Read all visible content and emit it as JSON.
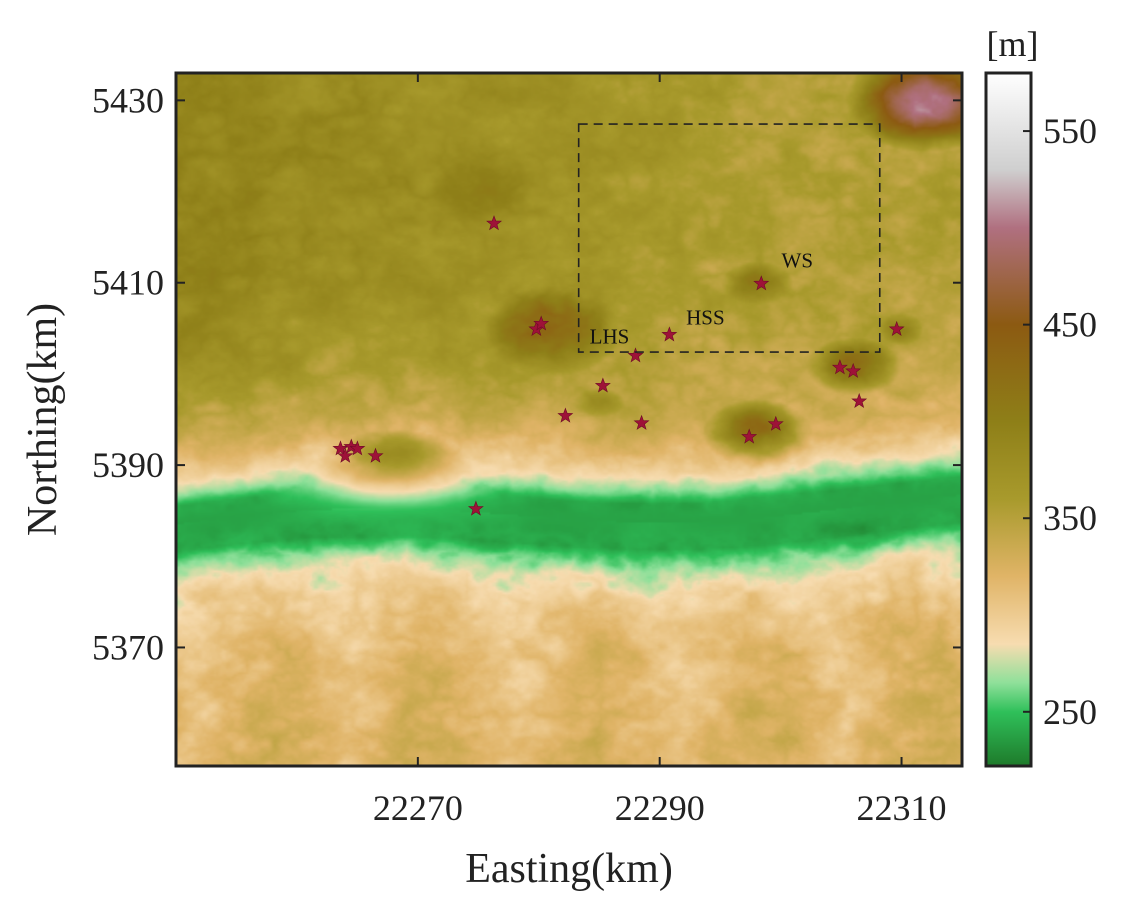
{
  "chart_data": {
    "type": "heatmap",
    "title": "",
    "xlabel": "Easting(km)",
    "ylabel": "Northing(km)",
    "xlim": [
      22250,
      22315
    ],
    "ylim": [
      5357,
      5433
    ],
    "xticks": [
      22270,
      22290,
      22310
    ],
    "yticks": [
      5370,
      5390,
      5410,
      5430
    ],
    "colorbar": {
      "unit": "[m]",
      "range": [
        222,
        580
      ],
      "ticks": [
        250,
        350,
        450,
        550
      ],
      "colors": [
        {
          "value": 222,
          "color": "#1e7a2a"
        },
        {
          "value": 250,
          "color": "#2fc05a"
        },
        {
          "value": 265,
          "color": "#8fe09a"
        },
        {
          "value": 285,
          "color": "#f7dcb0"
        },
        {
          "value": 320,
          "color": "#e0b467"
        },
        {
          "value": 360,
          "color": "#a89a2c"
        },
        {
          "value": 400,
          "color": "#8e7f18"
        },
        {
          "value": 450,
          "color": "#8c5a12"
        },
        {
          "value": 500,
          "color": "#b07080"
        },
        {
          "value": 530,
          "color": "#cfcfcf"
        },
        {
          "value": 580,
          "color": "#ffffff"
        }
      ]
    },
    "terrain": {
      "valley_floor_m": 238,
      "hills": [
        {
          "x": 22281,
          "y": 5405,
          "rx": 8,
          "ry": 7,
          "elev": 430
        },
        {
          "x": 22276,
          "y": 5420,
          "rx": 12,
          "ry": 9,
          "elev": 395
        },
        {
          "x": 22260,
          "y": 5415,
          "rx": 12,
          "ry": 10,
          "elev": 385
        },
        {
          "x": 22298,
          "y": 5410,
          "rx": 5,
          "ry": 4,
          "elev": 395
        },
        {
          "x": 22298,
          "y": 5394,
          "rx": 5,
          "ry": 4,
          "elev": 420
        },
        {
          "x": 22306,
          "y": 5401,
          "rx": 5,
          "ry": 4,
          "elev": 420
        },
        {
          "x": 22310,
          "y": 5405,
          "rx": 3,
          "ry": 3,
          "elev": 385
        },
        {
          "x": 22285,
          "y": 5397,
          "rx": 4,
          "ry": 3,
          "elev": 370
        },
        {
          "x": 22268,
          "y": 5391,
          "rx": 7,
          "ry": 4,
          "elev": 380
        },
        {
          "x": 22312,
          "y": 5430,
          "rx": 7,
          "ry": 6,
          "elev": 510
        }
      ]
    },
    "study_area": {
      "x": [
        22283.3,
        22308.2
      ],
      "y": [
        5402.4,
        5427.4
      ],
      "style": "dashed"
    },
    "stations": [
      {
        "x": 22276.3,
        "y": 5416.5
      },
      {
        "x": 22279.8,
        "y": 5404.9
      },
      {
        "x": 22280.2,
        "y": 5405.5
      },
      {
        "x": 22282.2,
        "y": 5395.4
      },
      {
        "x": 22285.3,
        "y": 5398.7
      },
      {
        "x": 22288.0,
        "y": 5402.0,
        "label": "LHS"
      },
      {
        "x": 22290.8,
        "y": 5404.3,
        "label": "HSS"
      },
      {
        "x": 22288.5,
        "y": 5394.6
      },
      {
        "x": 22297.4,
        "y": 5393.1
      },
      {
        "x": 22299.6,
        "y": 5394.5
      },
      {
        "x": 22298.4,
        "y": 5409.9,
        "label": "WS"
      },
      {
        "x": 22304.9,
        "y": 5400.7
      },
      {
        "x": 22306.0,
        "y": 5400.3
      },
      {
        "x": 22306.5,
        "y": 5397.0
      },
      {
        "x": 22309.6,
        "y": 5404.9
      },
      {
        "x": 22263.6,
        "y": 5391.8
      },
      {
        "x": 22264.0,
        "y": 5391.0
      },
      {
        "x": 22264.5,
        "y": 5392.0
      },
      {
        "x": 22265.0,
        "y": 5391.8
      },
      {
        "x": 22266.5,
        "y": 5391.0
      },
      {
        "x": 22274.8,
        "y": 5385.2
      }
    ]
  }
}
